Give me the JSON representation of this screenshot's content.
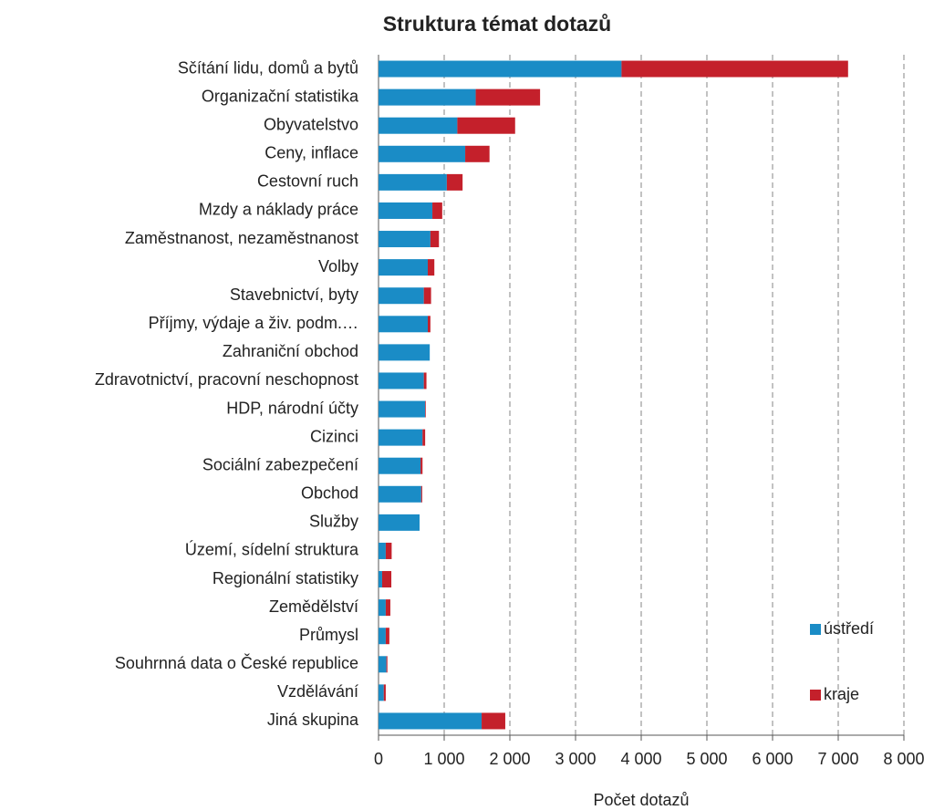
{
  "chart_data": {
    "type": "stacked-bar-horizontal",
    "title": "Struktura témat dotazů",
    "x_label": "Počet dotazů",
    "categories": [
      "Sčítání lidu, domů a bytů",
      "Organizační statistika",
      "Obyvatelstvo",
      "Ceny, inflace",
      "Cestovní ruch",
      "Mzdy a náklady práce",
      "Zaměstnanost, nezaměstnanost",
      "Volby",
      "Stavebnictví, byty",
      "Příjmy, výdaje a živ. podm.…",
      "Zahraniční obchod",
      "Zdravotnictví, pracovní neschopnost",
      "HDP, národní účty",
      "Cizinci",
      "Sociální zabezpečení",
      "Obchod",
      "Služby",
      "Území, sídelní struktura",
      "Regionální statistiky",
      "Zemědělství",
      "Průmysl",
      "Souhrnná data o České republice",
      "Vzdělávání",
      "Jiná skupina"
    ],
    "series": [
      {
        "name": "ústředí",
        "color": "#1a8cc6",
        "values": [
          3700,
          1480,
          1200,
          1320,
          1040,
          820,
          790,
          750,
          690,
          750,
          780,
          690,
          710,
          670,
          640,
          650,
          625,
          110,
          55,
          110,
          110,
          120,
          80,
          1570
        ]
      },
      {
        "name": "kraje",
        "color": "#c4202b",
        "values": [
          3450,
          980,
          880,
          370,
          240,
          150,
          130,
          100,
          110,
          40,
          0,
          40,
          10,
          40,
          30,
          15,
          0,
          90,
          140,
          70,
          55,
          15,
          30,
          360
        ]
      }
    ],
    "xlim": [
      0,
      8000
    ],
    "xticks": [
      0,
      {
        "value": 1000,
        "label": "1 000"
      },
      {
        "value": 2000,
        "label": "2 000"
      },
      {
        "value": 3000,
        "label": "3 000"
      },
      {
        "value": 4000,
        "label": "4 000"
      },
      {
        "value": 5000,
        "label": "5 000"
      },
      {
        "value": 6000,
        "label": "6 000"
      },
      {
        "value": 7000,
        "label": "7 000"
      },
      {
        "value": 8000,
        "label": "8 000"
      }
    ],
    "grid": true,
    "legend": "right"
  }
}
